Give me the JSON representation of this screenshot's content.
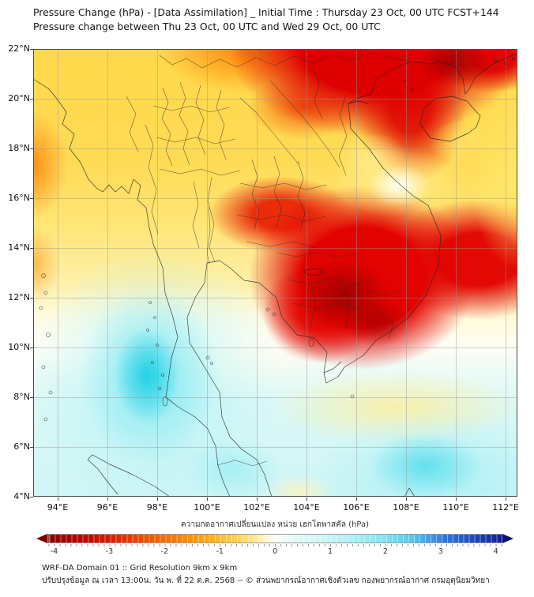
{
  "header": {
    "title_line1": "Pressure Change (hPa) - [Data Assimilation] _ Initial Time : Thursday 23 Oct, 00 UTC FCST+144",
    "title_line2": "Pressure change between Thu 23 Oct, 00 UTC and Wed 29 Oct, 00 UTC"
  },
  "map_axes": {
    "lat_ticks": [
      "22°N",
      "20°N",
      "18°N",
      "16°N",
      "14°N",
      "12°N",
      "10°N",
      "8°N",
      "6°N",
      "4°N"
    ],
    "lon_ticks": [
      "94°E",
      "96°E",
      "98°E",
      "100°E",
      "102°E",
      "104°E",
      "106°E",
      "108°E",
      "110°E",
      "112°E"
    ]
  },
  "colorbar": {
    "label": "ความกดอากาศเปลี่ยนแปลง หน่วย เฮกโตพาสคัล (hPa)",
    "tick_values": [
      -4,
      -3,
      -2,
      -1,
      0,
      1,
      2,
      3,
      4
    ],
    "unit": "hPa",
    "negative_end_color": "#7E0000",
    "zero_color": "#FFFEF4",
    "positive_end_color": "#101C96"
  },
  "footer": {
    "line1": "WRF-DA Domain 01 :: Grid Resolution 9km x 9km",
    "line2": "ปรับปรุงข้อมูล ณ เวลา 13:00น. วัน พ. ที่ 22 ต.ค. 2568 -- © ส่วนพยากรณ์อากาศเชิงตัวเลข กองพยากรณ์อากาศ กรมอุตุนิยมวิทยา"
  },
  "chart_data": {
    "type": "heatmap",
    "title": "Pressure Change (hPa) - [Data Assimilation] _ Initial Time : Thursday 23 Oct, 00 UTC FCST+144",
    "subtitle": "Pressure change between Thu 23 Oct, 00 UTC and Wed 29 Oct, 00 UTC",
    "variable": "surface pressure change",
    "units": "hPa",
    "lon_range": [
      93,
      112.5
    ],
    "lat_range": [
      4,
      22
    ],
    "xlabel_ticks": [
      94,
      96,
      98,
      100,
      102,
      104,
      106,
      108,
      110,
      112
    ],
    "ylabel_ticks": [
      4,
      6,
      8,
      10,
      12,
      14,
      16,
      18,
      20,
      22
    ],
    "colorbar_range": [
      -4,
      4
    ],
    "colorbar_note": "red/left = pressure falls (negative), blue/right = pressure rises (positive)",
    "grid": true,
    "features": [
      {
        "description": "strong pressure falls over northern Vietnam and Gulf of Tonkin",
        "center_lon": 106.5,
        "center_lat": 20.5,
        "value_hpa": -3.5
      },
      {
        "description": "darkest falls core over NE Cambodia / southern Laos / southern Vietnam",
        "center_lon": 105.3,
        "center_lat": 12.5,
        "value_hpa": -3.8
      },
      {
        "description": "falls extend east over South China Sea at 12-15N to map edge",
        "center_lon": 111.0,
        "center_lat": 13.5,
        "value_hpa": -3.0
      },
      {
        "description": "moderate falls over Myanmar and northern/central Thailand",
        "center_lon": 97.0,
        "center_lat": 17.0,
        "value_hpa": -1.3
      },
      {
        "description": "orange patch at western map edge",
        "center_lon": 93.2,
        "center_lat": 17.3,
        "value_hpa": -2.0
      },
      {
        "description": "weak falls / near zero east of Hainan and along east edge 16-19N",
        "center_lon": 111.8,
        "center_lat": 17.5,
        "value_hpa": -1.0
      },
      {
        "description": "near-zero pale corridor along central Vietnam coast",
        "center_lon": 107.6,
        "center_lat": 16.5,
        "value_hpa": -0.3
      },
      {
        "description": "near-zero band across ~10-11N on western half",
        "center_lon": 99.0,
        "center_lat": 10.5,
        "value_hpa": 0.0
      },
      {
        "description": "pressure rises over Andaman Sea and Thai peninsula",
        "center_lon": 97.7,
        "center_lat": 8.6,
        "value_hpa": 1.6
      },
      {
        "description": "pressure rises over southern South China Sea",
        "center_lon": 109.0,
        "center_lat": 5.3,
        "value_hpa": 1.2
      },
      {
        "description": "weak rises across the whole southern edge of domain",
        "center_lon": 102.0,
        "center_lat": 5.0,
        "value_hpa": 0.6
      }
    ]
  }
}
